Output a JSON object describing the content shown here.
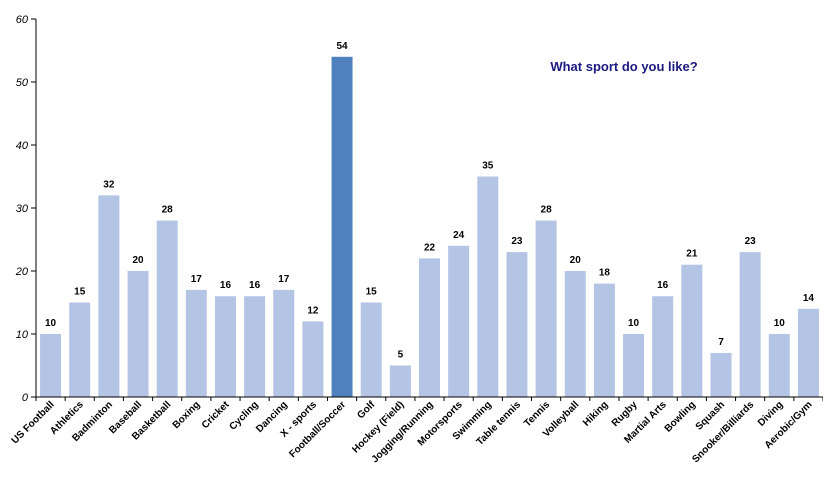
{
  "chart_data": {
    "type": "bar",
    "title": "What sport do you like?",
    "xlabel": "",
    "ylabel": "",
    "ylim": [
      0,
      60
    ],
    "yticks": [
      0,
      10,
      20,
      30,
      40,
      50,
      60
    ],
    "grid": false,
    "highlight_category": "Football/Soccer",
    "categories": [
      "US Football",
      "Athletics",
      "Badminton",
      "Baseball",
      "Basketball",
      "Boxing",
      "Cricket",
      "Cycling",
      "Dancing",
      "X - sports",
      "Football/Soccer",
      "Golf",
      "Hockey (Field)",
      "Jogging/Running",
      "Motorsports",
      "Swimming",
      "Table tennis",
      "Tennis",
      "Volleyball",
      "Hiking",
      "Rugby",
      "Martial Arts",
      "Bowling",
      "Squash",
      "Snooker/Billiards",
      "Diving",
      "Aerobic/Gym"
    ],
    "values": [
      10,
      15,
      32,
      20,
      28,
      17,
      16,
      16,
      17,
      12,
      54,
      15,
      5,
      22,
      24,
      35,
      23,
      28,
      20,
      18,
      10,
      16,
      21,
      7,
      23,
      10,
      14
    ]
  },
  "colors": {
    "bar": "#b4c4e4",
    "highlight": "#4f81bd",
    "title": "#1a1a80",
    "axis": "#000000"
  }
}
